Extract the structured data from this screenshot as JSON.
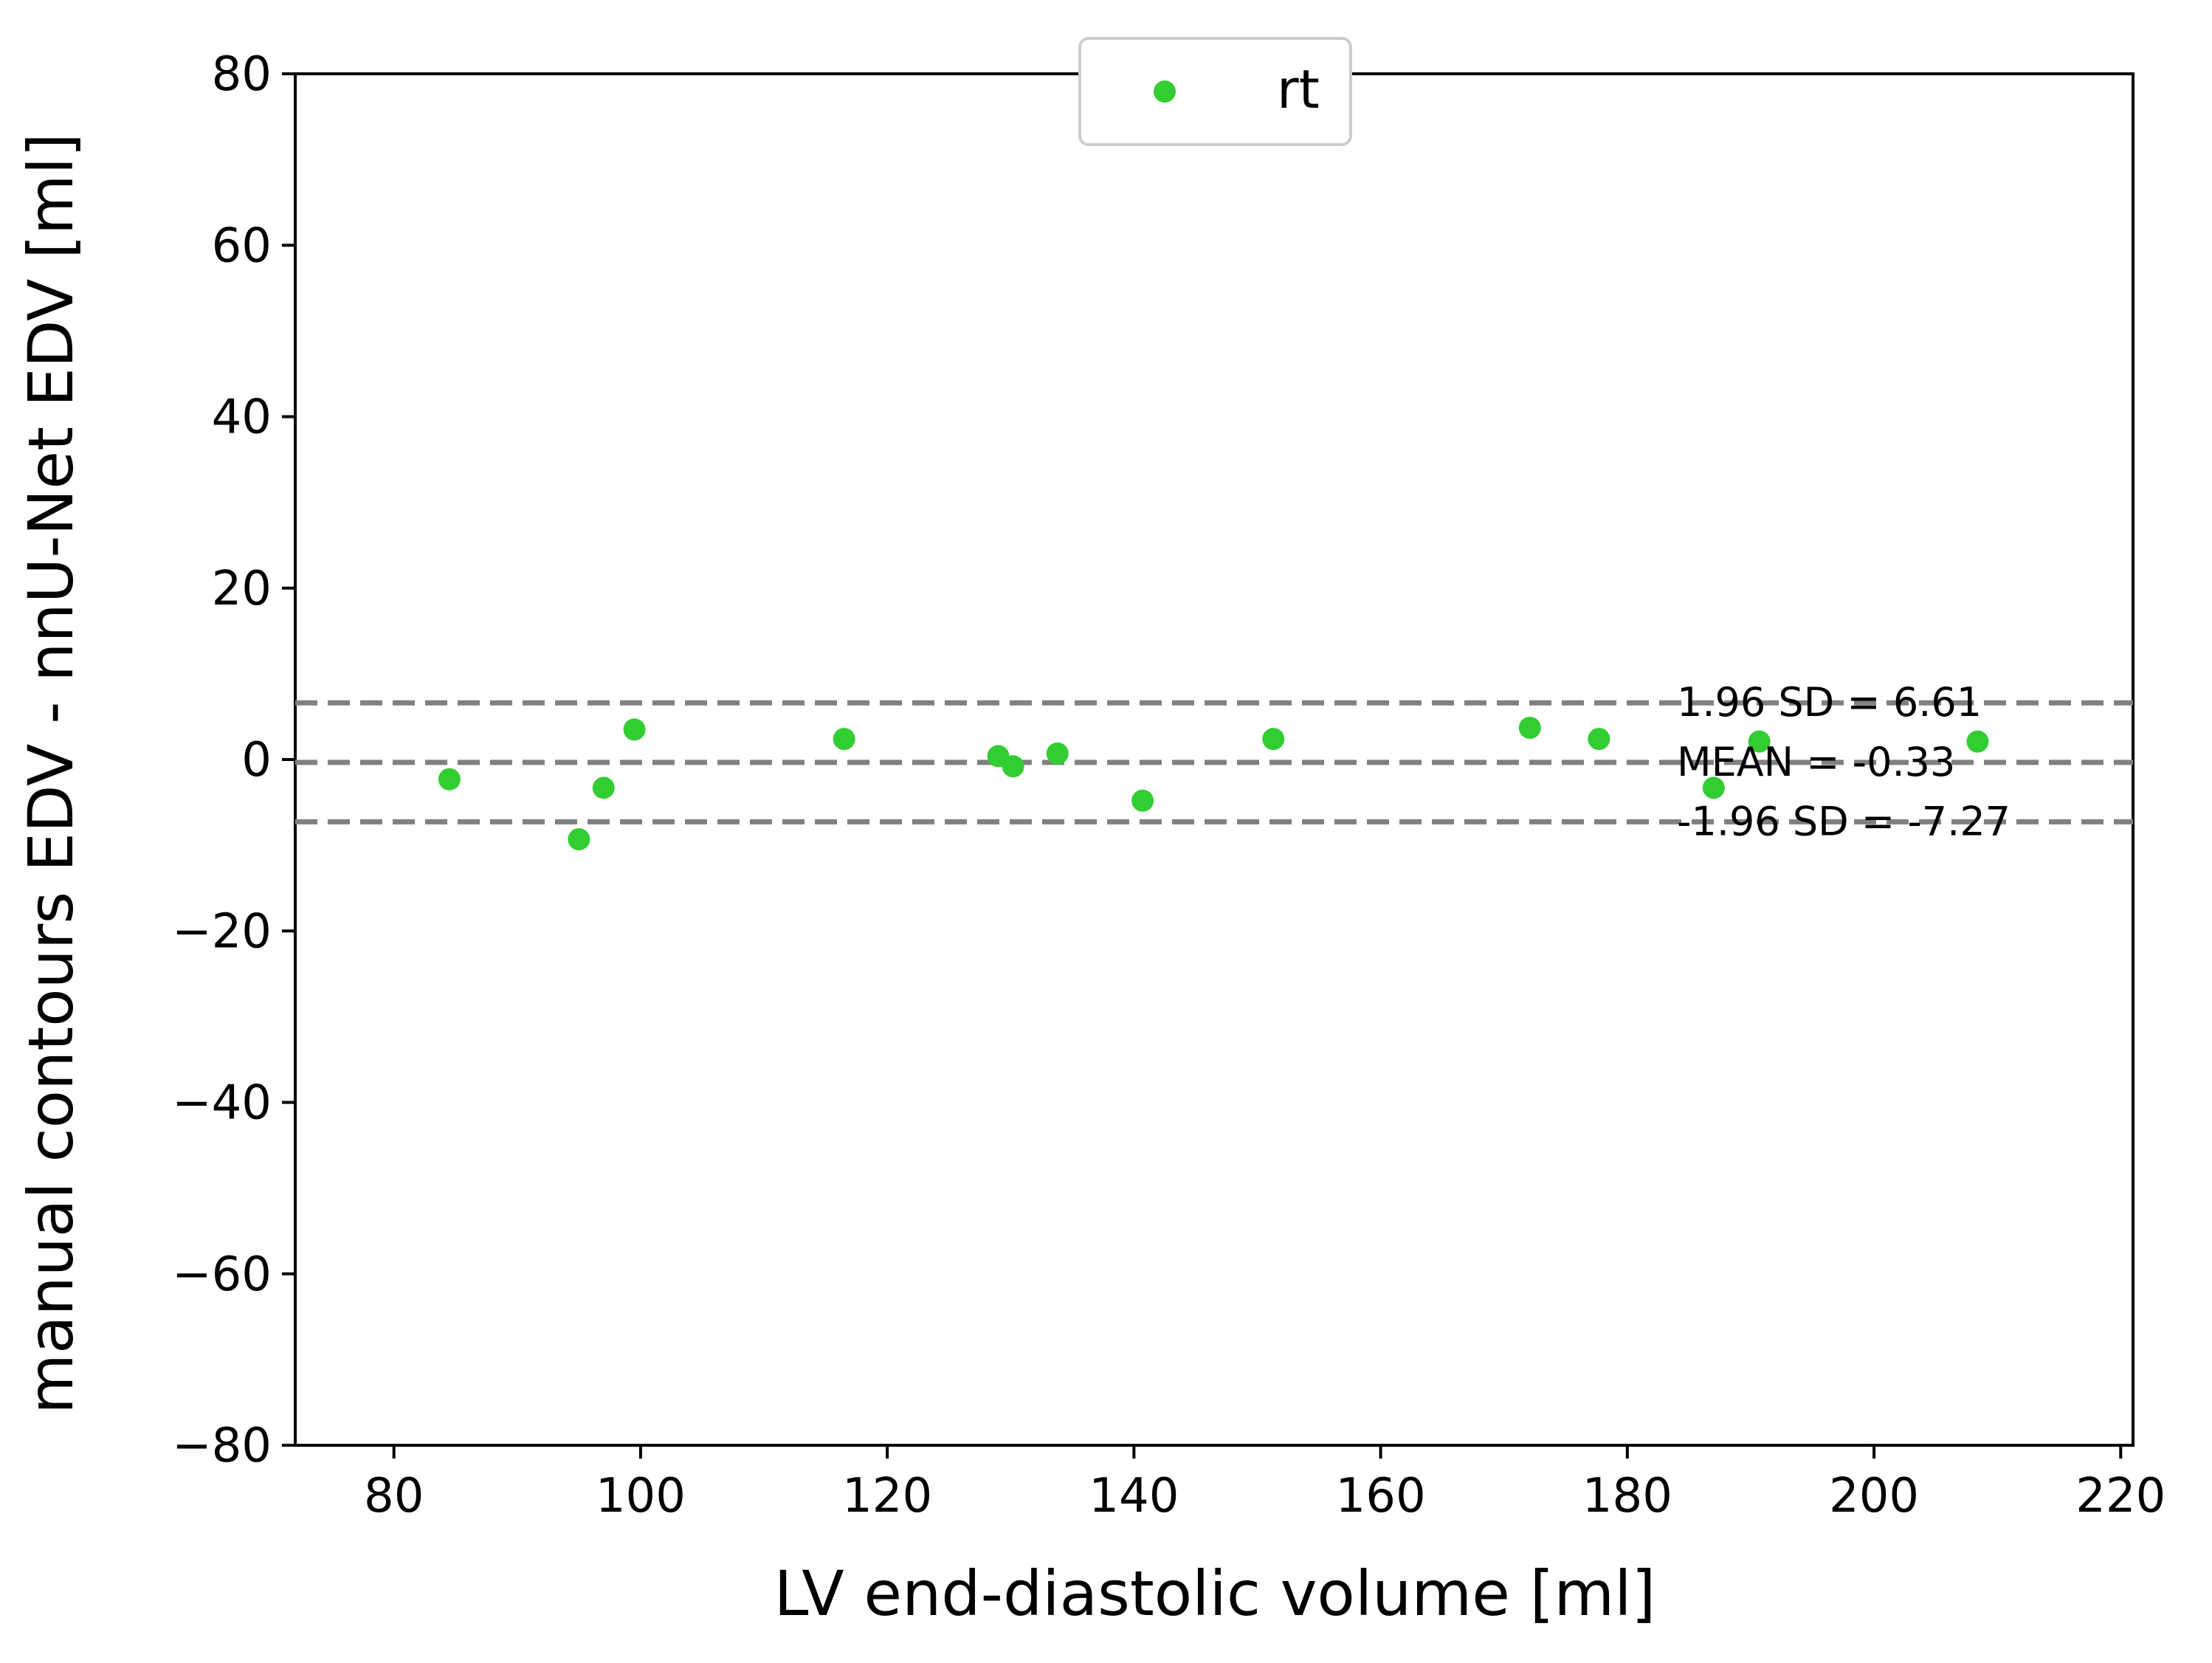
{
  "chart_data": {
    "type": "scatter",
    "xlabel": "LV end-diastolic volume [ml]",
    "ylabel": "manual contours EDV - nnU-Net EDV [ml]",
    "xlim": [
      72,
      221
    ],
    "ylim": [
      -80,
      80
    ],
    "xticks": [
      80,
      100,
      120,
      140,
      160,
      180,
      200,
      220
    ],
    "yticks": [
      -80,
      -60,
      -40,
      -20,
      0,
      20,
      40,
      60,
      80
    ],
    "xtick_labels": [
      "80",
      "100",
      "120",
      "140",
      "160",
      "180",
      "200",
      "220"
    ],
    "ytick_labels": [
      "−80",
      "−60",
      "−40",
      "−20",
      "0",
      "20",
      "40",
      "60",
      "80"
    ],
    "grid": false,
    "legend": {
      "position": "top-center",
      "entries": [
        "rt"
      ]
    },
    "series": [
      {
        "name": "rt",
        "color": "#32cd32",
        "points": [
          {
            "x": 84.5,
            "y": -2.3
          },
          {
            "x": 95.0,
            "y": -9.3
          },
          {
            "x": 97.0,
            "y": -3.3
          },
          {
            "x": 99.5,
            "y": 3.5
          },
          {
            "x": 116.5,
            "y": 2.4
          },
          {
            "x": 129.0,
            "y": 0.4
          },
          {
            "x": 130.2,
            "y": -0.8
          },
          {
            "x": 133.8,
            "y": 0.7
          },
          {
            "x": 140.7,
            "y": -4.8
          },
          {
            "x": 151.3,
            "y": 2.4
          },
          {
            "x": 172.1,
            "y": 3.7
          },
          {
            "x": 177.7,
            "y": 2.4
          },
          {
            "x": 187.0,
            "y": -3.3
          },
          {
            "x": 190.7,
            "y": 2.1
          },
          {
            "x": 208.4,
            "y": 2.1
          }
        ]
      }
    ],
    "reference_lines": [
      {
        "name": "upper-limit",
        "y": 6.61,
        "label": "1.96 SD = 6.61",
        "color": "#808080",
        "style": "dashed"
      },
      {
        "name": "mean",
        "y": -0.33,
        "label": "MEAN = -0.33",
        "color": "#808080",
        "style": "dashed"
      },
      {
        "name": "lower-limit",
        "y": -7.27,
        "label": "-1.96 SD = -7.27",
        "color": "#808080",
        "style": "dashed"
      }
    ]
  }
}
